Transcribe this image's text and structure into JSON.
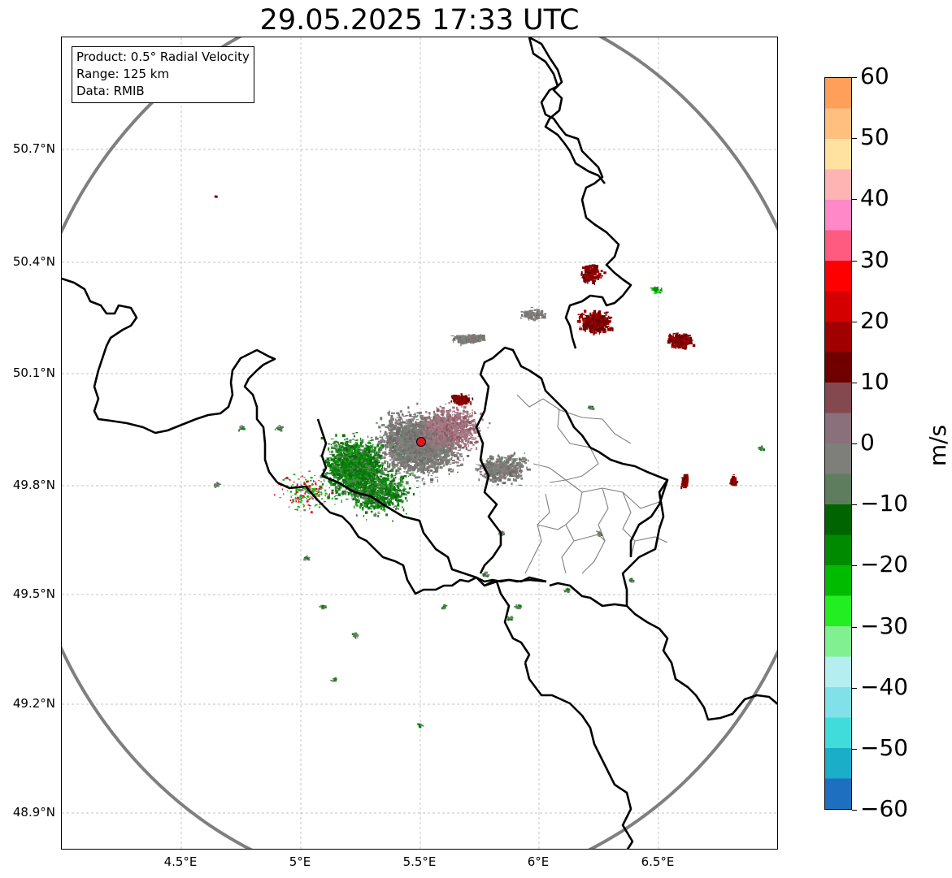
{
  "title": "29.05.2025 17:33 UTC",
  "info_box": {
    "product": "Product: 0.5° Radial Velocity",
    "range": "Range: 125 km",
    "data": "Data: RMIB"
  },
  "axes": {
    "lat_ticks": [
      "50.7°N",
      "50.4°N",
      "50.1°N",
      "49.8°N",
      "49.5°N",
      "49.2°N",
      "48.9°N"
    ],
    "lon_ticks": [
      "4.5°E",
      "5°E",
      "5.5°E",
      "6°E",
      "6.5°E"
    ]
  },
  "colorbar": {
    "unit": "m/s",
    "labels": [
      "60",
      "50",
      "40",
      "30",
      "20",
      "10",
      "0",
      "−10",
      "−20",
      "−30",
      "−40",
      "−50",
      "−60"
    ],
    "range": [
      -60,
      60
    ],
    "colors_top_to_bottom": [
      "#ff9f5a",
      "#ffbf7f",
      "#ffe29f",
      "#ffb4b4",
      "#ff88c8",
      "#ff5a80",
      "#ff0000",
      "#d40000",
      "#a00000",
      "#700000",
      "#84494f",
      "#8a707a",
      "#7e7e7a",
      "#5e7d5e",
      "#006400",
      "#008a00",
      "#00bb00",
      "#22ee22",
      "#80f090",
      "#b4eef0",
      "#80e2e8",
      "#40dcdc",
      "#1aaec8",
      "#1f6fc0"
    ]
  },
  "radar_site": {
    "lon": 5.505,
    "lat": 49.914,
    "color": "#e8141c"
  },
  "colors": {
    "range_ring": "#7f7f7f",
    "border": "#000000",
    "subdivision": "#808080",
    "grid": "#b0b0b0",
    "echo_dark_red": "#7a0000",
    "echo_gray": "#7e7474",
    "echo_green": "#0a7a0a"
  }
}
